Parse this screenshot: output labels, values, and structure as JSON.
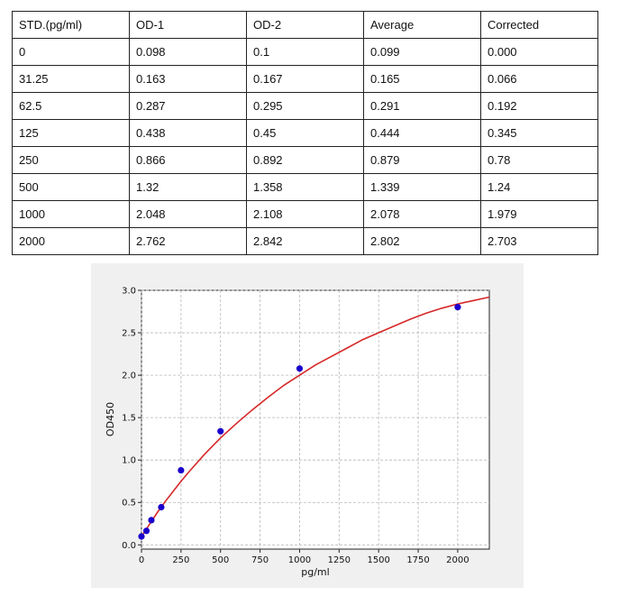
{
  "table": {
    "headers": [
      "STD.(pg/ml)",
      "OD-1",
      "OD-2",
      "Average",
      "Corrected"
    ],
    "rows": [
      [
        "0",
        "0.098",
        "0.1",
        "0.099",
        "0.000"
      ],
      [
        "31.25",
        "0.163",
        "0.167",
        "0.165",
        "0.066"
      ],
      [
        "62.5",
        "0.287",
        "0.295",
        "0.291",
        "0.192"
      ],
      [
        "125",
        "0.438",
        "0.45",
        "0.444",
        "0.345"
      ],
      [
        "250",
        "0.866",
        "0.892",
        "0.879",
        "0.78"
      ],
      [
        "500",
        "1.32",
        "1.358",
        "1.339",
        "1.24"
      ],
      [
        "1000",
        "2.048",
        "2.108",
        "2.078",
        "1.979"
      ],
      [
        "2000",
        "2.762",
        "2.842",
        "2.802",
        "2.703"
      ]
    ]
  },
  "chart_data": {
    "type": "scatter",
    "title": "",
    "xlabel": "pg/ml",
    "ylabel": "OD450",
    "xlim": [
      0,
      2200
    ],
    "ylim": [
      -0.05,
      3.0
    ],
    "xticks": [
      0,
      250,
      500,
      750,
      1000,
      1250,
      1500,
      1750,
      2000
    ],
    "xtick_labels": [
      "0",
      "250",
      "500",
      "750",
      "1000",
      "1250",
      "1500",
      "1750",
      "2000"
    ],
    "yticks": [
      0.0,
      0.5,
      1.0,
      1.5,
      2.0,
      2.5,
      3.0
    ],
    "ytick_labels": [
      "0.0",
      "0.5",
      "1.0",
      "1.5",
      "2.0",
      "2.5",
      "3.0"
    ],
    "grid": true,
    "points": {
      "x": [
        0,
        31.25,
        62.5,
        125,
        250,
        500,
        1000,
        2000
      ],
      "y": [
        0.099,
        0.165,
        0.291,
        0.444,
        0.879,
        1.339,
        2.078,
        2.802
      ],
      "color": "#1a00cc"
    },
    "fit_curve": {
      "color": "#d62728",
      "x": [
        0,
        50,
        100,
        150,
        200,
        250,
        300,
        400,
        500,
        600,
        700,
        800,
        900,
        1000,
        1100,
        1200,
        1300,
        1400,
        1500,
        1600,
        1700,
        1800,
        1900,
        2000,
        2100,
        2200
      ],
      "y": [
        0.1,
        0.24,
        0.38,
        0.51,
        0.63,
        0.75,
        0.86,
        1.07,
        1.26,
        1.43,
        1.59,
        1.74,
        1.88,
        2.0,
        2.12,
        2.22,
        2.32,
        2.42,
        2.5,
        2.58,
        2.66,
        2.73,
        2.79,
        2.84,
        2.88,
        2.92
      ]
    }
  }
}
